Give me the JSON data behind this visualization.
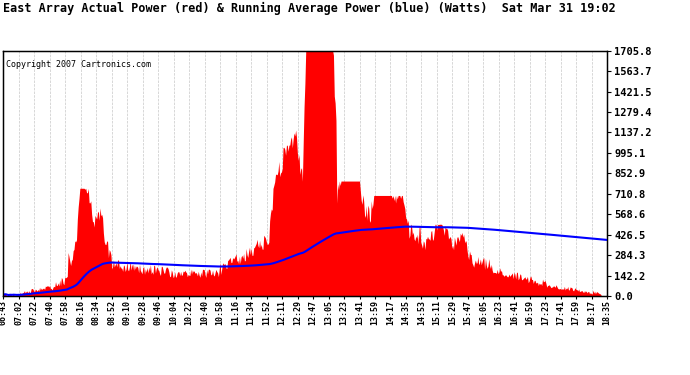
{
  "title": "East Array Actual Power (red) & Running Average Power (blue) (Watts)  Sat Mar 31 19:02",
  "copyright": "Copyright 2007 Cartronics.com",
  "ylabel_right_ticks": [
    0.0,
    142.2,
    284.3,
    426.5,
    568.6,
    710.8,
    852.9,
    995.1,
    1137.2,
    1279.4,
    1421.5,
    1563.7,
    1705.8
  ],
  "xlabels": [
    "06:43",
    "07:02",
    "07:22",
    "07:40",
    "07:58",
    "08:16",
    "08:34",
    "08:52",
    "09:10",
    "09:28",
    "09:46",
    "10:04",
    "10:22",
    "10:40",
    "10:58",
    "11:16",
    "11:34",
    "11:52",
    "12:11",
    "12:29",
    "12:47",
    "13:05",
    "13:23",
    "13:41",
    "13:59",
    "14:17",
    "14:35",
    "14:53",
    "15:11",
    "15:29",
    "15:47",
    "16:05",
    "16:23",
    "16:41",
    "16:59",
    "17:23",
    "17:41",
    "17:59",
    "18:17",
    "18:35"
  ],
  "background_color": "#ffffff",
  "red_color": "#ff0000",
  "blue_color": "#0000ff",
  "grid_color": "#c8c8c8",
  "ymax": 1705.8,
  "ymin": 0.0
}
